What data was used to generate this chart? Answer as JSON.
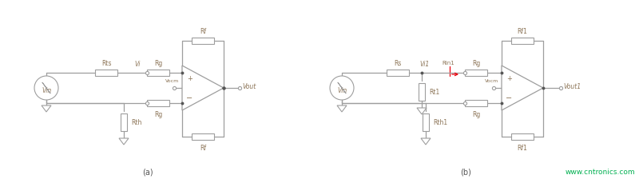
{
  "bg_color": "#ffffff",
  "line_color": "#9e9e9e",
  "text_color": "#8b7355",
  "red_color": "#e8000e",
  "green_color": "#00b050",
  "dot_color": "#555555",
  "label_a": "(a)",
  "label_b": "(b)",
  "website": "www.cntronics.com",
  "fig_width": 8.0,
  "fig_height": 2.3
}
